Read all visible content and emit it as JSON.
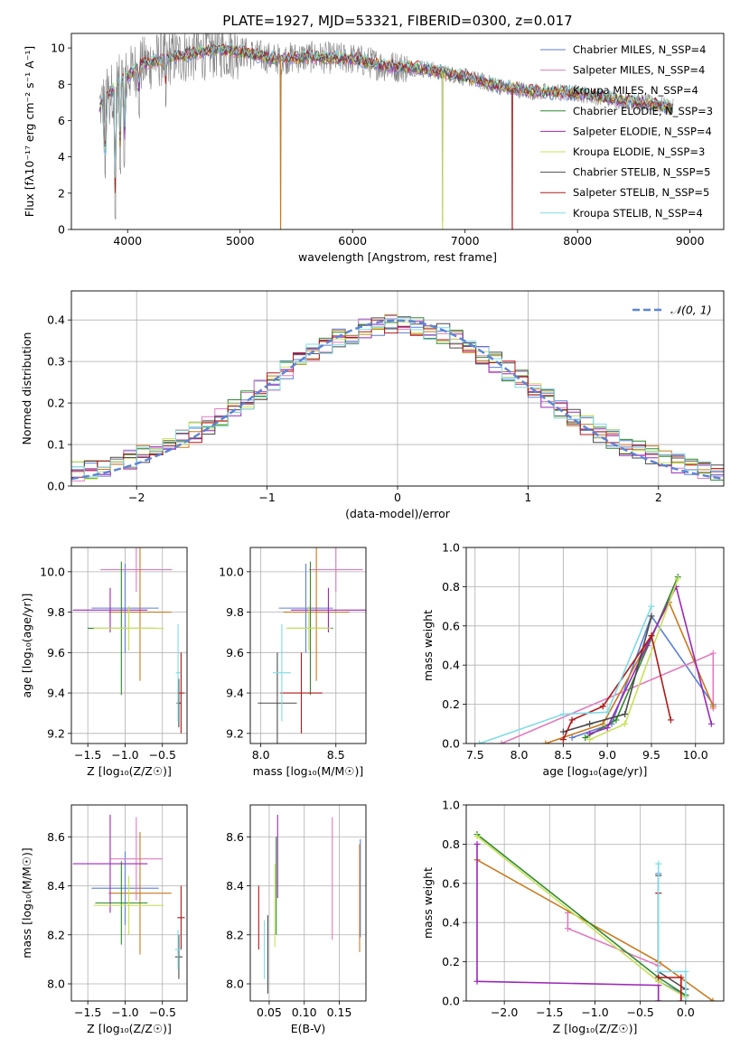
{
  "figure": {
    "title": "PLATE=1927, MJD=53321, FIBERID=0300, z=0.017"
  },
  "colors": {
    "chabrier_miles": "#5b7fd6",
    "salpeter_miles": "#e07bbf",
    "kroupa_miles": "#c97a1e",
    "chabrier_elodie": "#2f8a2f",
    "salpeter_elodie": "#9b28b8",
    "kroupa_elodie": "#c8e05a",
    "chabrier_stelib": "#4a4a4a",
    "salpeter_stelib": "#b01818",
    "kroupa_stelib": "#7fdce6",
    "data": "#808080",
    "gauss": "#5b84d8",
    "grid": "#b0b0b0"
  },
  "chart_data": [
    {
      "id": "spectrum",
      "type": "line",
      "title": "",
      "xlabel": "wavelength [Angstrom, rest frame]",
      "ylabel": "Flux [fλ10⁻¹⁷ erg cm⁻² s⁻¹ A⁻¹]",
      "xlim": [
        3500,
        9300
      ],
      "ylim": [
        0,
        10.8
      ],
      "xticks": [
        4000,
        5000,
        6000,
        7000,
        8000,
        9000
      ],
      "yticks": [
        0,
        2,
        4,
        6,
        8,
        10
      ],
      "grid": false,
      "legend_placement": "top-right",
      "legend": [
        "Chabrier MILES, N_SSP=4",
        "Salpeter MILES, N_SSP=4",
        "Kroupa MILES, N_SSP=4",
        "Chabrier ELODIE, N_SSP=3",
        "Salpeter ELODIE, N_SSP=4",
        "Kroupa ELODIE, N_SSP=3",
        "Chabrier STELIB, N_SSP=5",
        "Salpeter STELIB, N_SSP=5",
        "Kroupa STELIB, N_SSP=4"
      ],
      "continuum": [
        [
          3750,
          6.8
        ],
        [
          3850,
          7.6
        ],
        [
          3950,
          8.2
        ],
        [
          4100,
          9.0
        ],
        [
          4300,
          9.4
        ],
        [
          4500,
          9.6
        ],
        [
          4800,
          9.9
        ],
        [
          5000,
          9.8
        ],
        [
          5300,
          9.4
        ],
        [
          5600,
          9.5
        ],
        [
          6000,
          9.4
        ],
        [
          6300,
          9.0
        ],
        [
          6600,
          8.9
        ],
        [
          7000,
          8.4
        ],
        [
          7300,
          7.9
        ],
        [
          7600,
          7.6
        ],
        [
          8000,
          7.5
        ],
        [
          8300,
          7.2
        ],
        [
          8700,
          6.9
        ],
        [
          8850,
          6.7
        ]
      ],
      "dips": [
        [
          3800,
          2.6
        ],
        [
          3890,
          0.4
        ],
        [
          3935,
          3.0
        ],
        [
          3970,
          3.4
        ],
        [
          4102,
          6.0
        ],
        [
          4340,
          6.5
        ],
        [
          5360,
          0.0
        ],
        [
          6800,
          0.0
        ],
        [
          7420,
          0.3
        ]
      ]
    },
    {
      "id": "residuals",
      "type": "line",
      "title": "",
      "xlabel": "(data-model)/error",
      "ylabel": "Normed distribution",
      "xlim": [
        -2.5,
        2.5
      ],
      "ylim": [
        0,
        0.47
      ],
      "xticks": [
        -2,
        -1,
        0,
        1,
        2
      ],
      "yticks": [
        0.0,
        0.1,
        0.2,
        0.3,
        0.4
      ],
      "grid": true,
      "legend_placement": "top-right",
      "legend": [
        "𝒩(0, 1)"
      ]
    },
    {
      "id": "age_vs_Z",
      "type": "scatter",
      "xlabel": "Z [log₁₀(Z/Z☉)]",
      "ylabel": "age  [log₁₀(age/yr)]",
      "xlim": [
        -1.72,
        -0.17
      ],
      "ylim": [
        9.15,
        10.12
      ],
      "xticks": [
        -1.5,
        -1.0,
        -0.5
      ],
      "yticks": [
        9.2,
        9.4,
        9.6,
        9.8,
        10.0
      ],
      "grid": true,
      "points": [
        {
          "x": -1.0,
          "y": 9.82,
          "xerr": 0.45,
          "yerr": 0.22,
          "color": "chabrier_miles"
        },
        {
          "x": -0.85,
          "y": 10.01,
          "xerr": 0.48,
          "yerr": 0.11,
          "color": "salpeter_miles"
        },
        {
          "x": -0.8,
          "y": 9.8,
          "xerr": 0.42,
          "yerr": 0.34,
          "color": "kroupa_miles"
        },
        {
          "x": -1.05,
          "y": 9.72,
          "xerr": 0.45,
          "yerr": 0.33,
          "color": "chabrier_elodie"
        },
        {
          "x": -1.2,
          "y": 9.81,
          "xerr": 0.5,
          "yerr": 0.11,
          "color": "salpeter_elodie"
        },
        {
          "x": -0.95,
          "y": 9.72,
          "xerr": 0.47,
          "yerr": 0.11,
          "color": "kroupa_elodie"
        },
        {
          "x": -0.28,
          "y": 9.35,
          "xerr": 0.03,
          "yerr": 0.12,
          "color": "chabrier_stelib"
        },
        {
          "x": -0.25,
          "y": 9.4,
          "xerr": 0.05,
          "yerr": 0.2,
          "color": "salpeter_stelib"
        },
        {
          "x": -0.29,
          "y": 9.5,
          "xerr": 0.03,
          "yerr": 0.24,
          "color": "kroupa_stelib"
        }
      ]
    },
    {
      "id": "age_vs_mass",
      "type": "scatter",
      "xlabel": "mass [log₁₀(M/M☉)]",
      "ylabel": "",
      "xlim": [
        7.93,
        8.7
      ],
      "ylim": [
        9.15,
        10.12
      ],
      "xticks": [
        8.0,
        8.5
      ],
      "yticks": [
        9.2,
        9.4,
        9.6,
        9.8,
        10.0
      ],
      "grid": true,
      "points": [
        {
          "x": 8.3,
          "y": 9.82,
          "xerr": 0.18,
          "yerr": 0.22,
          "color": "chabrier_miles"
        },
        {
          "x": 8.5,
          "y": 10.01,
          "xerr": 0.18,
          "yerr": 0.11,
          "color": "salpeter_miles"
        },
        {
          "x": 8.37,
          "y": 9.8,
          "xerr": 0.22,
          "yerr": 0.34,
          "color": "kroupa_miles"
        },
        {
          "x": 8.33,
          "y": 9.72,
          "xerr": 0.15,
          "yerr": 0.33,
          "color": "chabrier_elodie"
        },
        {
          "x": 8.45,
          "y": 9.81,
          "xerr": 0.25,
          "yerr": 0.11,
          "color": "salpeter_elodie"
        },
        {
          "x": 8.32,
          "y": 9.72,
          "xerr": 0.15,
          "yerr": 0.11,
          "color": "kroupa_elodie"
        },
        {
          "x": 8.11,
          "y": 9.35,
          "xerr": 0.13,
          "yerr": 0.25,
          "color": "chabrier_stelib"
        },
        {
          "x": 8.27,
          "y": 9.4,
          "xerr": 0.14,
          "yerr": 0.2,
          "color": "salpeter_stelib"
        },
        {
          "x": 8.14,
          "y": 9.5,
          "xerr": 0.06,
          "yerr": 0.24,
          "color": "kroupa_stelib"
        }
      ]
    },
    {
      "id": "mass_weight_vs_age",
      "type": "line",
      "xlabel": "age  [log₁₀(age/yr)]",
      "ylabel": "mass weight",
      "xlim": [
        7.4,
        10.32
      ],
      "ylim": [
        0,
        1.0
      ],
      "xticks": [
        7.5,
        8.0,
        8.5,
        9.0,
        9.5,
        10.0
      ],
      "yticks": [
        0.0,
        0.2,
        0.4,
        0.6,
        0.8,
        1.0
      ],
      "grid": true,
      "series": [
        {
          "color": "chabrier_miles",
          "x": [
            8.6,
            9.05,
            9.5,
            10.2
          ],
          "y": [
            0.03,
            0.1,
            0.65,
            0.2
          ]
        },
        {
          "color": "salpeter_miles",
          "x": [
            7.8,
            10.2,
            10.2
          ],
          "y": [
            0.0,
            0.46,
            0.18
          ]
        },
        {
          "color": "kroupa_miles",
          "x": [
            8.3,
            8.95,
            9.5,
            9.7,
            10.2
          ],
          "y": [
            0.0,
            0.1,
            0.55,
            0.72,
            0.19
          ]
        },
        {
          "color": "chabrier_elodie",
          "x": [
            8.75,
            9.1,
            9.8
          ],
          "y": [
            0.03,
            0.12,
            0.85
          ]
        },
        {
          "color": "salpeter_elodie",
          "x": [
            8.8,
            9.0,
            9.45,
            9.78,
            10.18
          ],
          "y": [
            0.05,
            0.08,
            0.5,
            0.8,
            0.1
          ]
        },
        {
          "color": "kroupa_elodie",
          "x": [
            8.8,
            9.2,
            9.8
          ],
          "y": [
            0.02,
            0.1,
            0.84
          ]
        },
        {
          "color": "chabrier_stelib",
          "x": [
            8.5,
            8.8,
            9.2,
            9.5
          ],
          "y": [
            0.06,
            0.1,
            0.15,
            0.65
          ]
        },
        {
          "color": "salpeter_stelib",
          "x": [
            8.5,
            8.6,
            8.95,
            9.5,
            9.72
          ],
          "y": [
            0.02,
            0.12,
            0.19,
            0.55,
            0.12
          ]
        },
        {
          "color": "kroupa_stelib",
          "x": [
            7.55,
            8.5,
            9.0,
            9.5
          ],
          "y": [
            0.0,
            0.15,
            0.16,
            0.7
          ]
        }
      ]
    },
    {
      "id": "mass_vs_Z",
      "type": "scatter",
      "xlabel": "Z [log₁₀(Z/Z☉)]",
      "ylabel": "mass [log₁₀(M/M☉)]",
      "xlim": [
        -1.72,
        -0.17
      ],
      "ylim": [
        7.93,
        8.73
      ],
      "xticks": [
        -1.5,
        -1.0,
        -0.5
      ],
      "yticks": [
        8.0,
        8.2,
        8.4,
        8.6
      ],
      "grid": true,
      "points": [
        {
          "x": -1.0,
          "y": 8.39,
          "xerr": 0.45,
          "yerr": 0.15,
          "color": "chabrier_miles"
        },
        {
          "x": -0.85,
          "y": 8.51,
          "xerr": 0.35,
          "yerr": 0.17,
          "color": "salpeter_miles"
        },
        {
          "x": -0.8,
          "y": 8.37,
          "xerr": 0.42,
          "yerr": 0.25,
          "color": "kroupa_miles"
        },
        {
          "x": -1.05,
          "y": 8.33,
          "xerr": 0.35,
          "yerr": 0.17,
          "color": "chabrier_elodie"
        },
        {
          "x": -1.2,
          "y": 8.49,
          "xerr": 0.5,
          "yerr": 0.2,
          "color": "salpeter_elodie"
        },
        {
          "x": -0.95,
          "y": 8.32,
          "xerr": 0.47,
          "yerr": 0.12,
          "color": "kroupa_elodie"
        },
        {
          "x": -0.28,
          "y": 8.11,
          "xerr": 0.05,
          "yerr": 0.09,
          "color": "chabrier_stelib"
        },
        {
          "x": -0.25,
          "y": 8.27,
          "xerr": 0.05,
          "yerr": 0.13,
          "color": "salpeter_stelib"
        },
        {
          "x": -0.29,
          "y": 8.14,
          "xerr": 0.04,
          "yerr": 0.08,
          "color": "kroupa_stelib"
        }
      ]
    },
    {
      "id": "mass_vs_ebv",
      "type": "scatter",
      "xlabel": "E(B-V)",
      "ylabel": "",
      "xlim": [
        0.023,
        0.188
      ],
      "ylim": [
        7.93,
        8.73
      ],
      "xticks": [
        0.05,
        0.1,
        0.15
      ],
      "yticks": [
        8.0,
        8.2,
        8.4,
        8.6
      ],
      "grid": true,
      "points": [
        {
          "x": 0.18,
          "y": 8.39,
          "xerr": 0.0,
          "yerr": 0.2,
          "color": "chabrier_miles"
        },
        {
          "x": 0.14,
          "y": 8.43,
          "xerr": 0.0,
          "yerr": 0.25,
          "color": "salpeter_miles"
        },
        {
          "x": 0.179,
          "y": 8.35,
          "xerr": 0.0,
          "yerr": 0.22,
          "color": "kroupa_miles"
        },
        {
          "x": 0.06,
          "y": 8.4,
          "xerr": 0.0,
          "yerr": 0.2,
          "color": "chabrier_elodie"
        },
        {
          "x": 0.062,
          "y": 8.52,
          "xerr": 0.0,
          "yerr": 0.17,
          "color": "salpeter_elodie"
        },
        {
          "x": 0.058,
          "y": 8.32,
          "xerr": 0.0,
          "yerr": 0.17,
          "color": "kroupa_elodie"
        },
        {
          "x": 0.048,
          "y": 8.12,
          "xerr": 0.0,
          "yerr": 0.16,
          "color": "chabrier_stelib"
        },
        {
          "x": 0.035,
          "y": 8.27,
          "xerr": 0.0,
          "yerr": 0.13,
          "color": "salpeter_stelib"
        },
        {
          "x": 0.043,
          "y": 8.14,
          "xerr": 0.0,
          "yerr": 0.12,
          "color": "kroupa_stelib"
        }
      ]
    },
    {
      "id": "mass_weight_vs_Z",
      "type": "line",
      "xlabel": "Z [log₁₀(Z/Z☉)]",
      "ylabel": "mass weight",
      "xlim": [
        -2.42,
        0.42
      ],
      "ylim": [
        0,
        1.0
      ],
      "xticks": [
        -2.0,
        -1.5,
        -1.0,
        -0.5,
        0.0
      ],
      "yticks": [
        0.0,
        0.2,
        0.4,
        0.6,
        0.8,
        1.0
      ],
      "grid": true,
      "series": [
        {
          "color": "chabrier_miles",
          "x": [
            -0.3,
            -0.3,
            0.0
          ],
          "y": [
            0.65,
            0.1,
            0.03
          ]
        },
        {
          "color": "salpeter_miles",
          "x": [
            -1.3,
            -1.3,
            -0.3,
            -0.3
          ],
          "y": [
            0.45,
            0.37,
            0.18,
            0.0
          ]
        },
        {
          "color": "kroupa_miles",
          "x": [
            -2.3,
            -0.3,
            0.3
          ],
          "y": [
            0.72,
            0.2,
            0.0
          ]
        },
        {
          "color": "chabrier_elodie",
          "x": [
            -2.3,
            -0.3,
            0.0
          ],
          "y": [
            0.85,
            0.12,
            0.03
          ]
        },
        {
          "color": "salpeter_elodie",
          "x": [
            -2.3,
            -2.3,
            -0.3,
            -0.3
          ],
          "y": [
            0.8,
            0.1,
            0.08,
            0.0
          ]
        },
        {
          "color": "kroupa_elodie",
          "x": [
            -2.3,
            -0.3,
            0.0
          ],
          "y": [
            0.84,
            0.1,
            0.02
          ]
        },
        {
          "color": "chabrier_stelib",
          "x": [
            -0.3,
            -0.3,
            0.0
          ],
          "y": [
            0.64,
            0.15,
            0.06
          ]
        },
        {
          "color": "salpeter_stelib",
          "x": [
            -0.3,
            -0.3,
            -0.05,
            -0.05
          ],
          "y": [
            0.55,
            0.12,
            0.12,
            0.0
          ]
        },
        {
          "color": "kroupa_stelib",
          "x": [
            -0.3,
            -0.3,
            0.0,
            0.0
          ],
          "y": [
            0.7,
            0.15,
            0.15,
            0.0
          ]
        }
      ]
    }
  ]
}
